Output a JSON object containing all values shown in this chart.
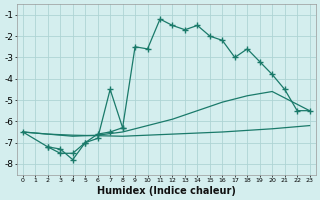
{
  "background_color": "#d4eeee",
  "grid_color": "#aed4d4",
  "line_color": "#1a7a6a",
  "xlabel": "Humidex (Indice chaleur)",
  "xlim": [
    -0.5,
    23.5
  ],
  "ylim": [
    -8.5,
    -0.5
  ],
  "yticks": [
    -8,
    -7,
    -6,
    -5,
    -4,
    -3,
    -2,
    -1
  ],
  "xticks": [
    0,
    1,
    2,
    3,
    4,
    5,
    6,
    7,
    8,
    9,
    10,
    11,
    12,
    13,
    14,
    15,
    16,
    17,
    18,
    19,
    20,
    21,
    22,
    23
  ],
  "series": [
    {
      "x": [
        0,
        2,
        4,
        8,
        12,
        16,
        20,
        23
      ],
      "y": [
        -6.5,
        -6.6,
        -6.65,
        -6.7,
        -6.6,
        -6.5,
        -6.35,
        -6.2
      ],
      "with_markers": false
    },
    {
      "x": [
        0,
        2,
        4,
        6,
        8,
        10,
        12,
        14,
        16,
        18,
        20,
        23
      ],
      "y": [
        -6.5,
        -6.6,
        -6.7,
        -6.65,
        -6.5,
        -6.2,
        -5.9,
        -5.5,
        -5.1,
        -4.8,
        -4.6,
        -5.5
      ],
      "with_markers": false
    },
    {
      "x": [
        0,
        2,
        3,
        4,
        5,
        6,
        7,
        8,
        9,
        10,
        11,
        12,
        13,
        14,
        15,
        16,
        17,
        18,
        19,
        20,
        21,
        22,
        23
      ],
      "y": [
        -6.5,
        -7.2,
        -7.5,
        -7.5,
        -7.0,
        -6.6,
        -6.5,
        -6.3,
        -2.5,
        -2.6,
        -1.2,
        -1.5,
        -1.7,
        -1.5,
        -2.0,
        -2.2,
        -3.0,
        -2.6,
        -3.2,
        -3.8,
        -4.5,
        -5.5,
        -5.5
      ],
      "with_markers": true
    },
    {
      "x": [
        2,
        3,
        4,
        5,
        6,
        7,
        8
      ],
      "y": [
        -7.2,
        -7.3,
        -7.8,
        -7.0,
        -6.8,
        -4.5,
        -6.3
      ],
      "with_markers": true
    }
  ]
}
